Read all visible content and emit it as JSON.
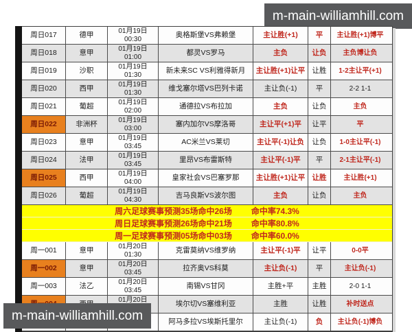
{
  "watermark": "m-main-williamhill.com",
  "colors": {
    "highlight_orange": "#e8801e",
    "banner_yellow": "#ffff00",
    "prediction_red": "#c0281e",
    "watermark_gray": "#58595b"
  },
  "table": {
    "rows": [
      {
        "type": "match",
        "id": "周日017",
        "league": "德甲",
        "date": "01月19日",
        "time": "00:30",
        "teams": "奥格斯堡VS弗赖堡",
        "preds": [
          {
            "text": "主让胜(+1)",
            "style": "red"
          },
          {
            "text": "平",
            "style": "red"
          },
          {
            "text": "主让胜(+1)博平",
            "style": "red"
          }
        ],
        "highlight": false,
        "shade": false
      },
      {
        "type": "match",
        "id": "周日018",
        "league": "意甲",
        "date": "01月19日",
        "time": "01:00",
        "teams": "都灵VS罗马",
        "preds": [
          {
            "text": "主负",
            "style": "red"
          },
          {
            "text": "让负",
            "style": "red"
          },
          {
            "text": "主负博让负",
            "style": "red"
          }
        ],
        "highlight": false,
        "shade": true
      },
      {
        "type": "match",
        "id": "周日019",
        "league": "沙职",
        "date": "01月19日",
        "time": "01:30",
        "teams": "新未来SC VS利雅得新月",
        "preds": [
          {
            "text": "主让胜(+1)让平",
            "style": "red"
          },
          {
            "text": "让胜",
            "style": "black"
          },
          {
            "text": "1-2主让平(+1)",
            "style": "red"
          }
        ],
        "highlight": false,
        "shade": false
      },
      {
        "type": "match",
        "id": "周日020",
        "league": "西甲",
        "date": "01月19日",
        "time": "01:30",
        "teams": "维戈塞尔塔VS巴列卡诺",
        "preds": [
          {
            "text": "主让负(-1)",
            "style": "black"
          },
          {
            "text": "平",
            "style": "black"
          },
          {
            "text": "2-2 1-1",
            "style": "black"
          }
        ],
        "highlight": false,
        "shade": true
      },
      {
        "type": "match",
        "id": "周日021",
        "league": "葡超",
        "date": "01月19日",
        "time": "02:00",
        "teams": "通德拉VS布拉加",
        "preds": [
          {
            "text": "主负",
            "style": "red"
          },
          {
            "text": "让负",
            "style": "black"
          },
          {
            "text": "主负",
            "style": "red"
          }
        ],
        "highlight": false,
        "shade": false
      },
      {
        "type": "match",
        "id": "周日022",
        "league": "非洲杯",
        "date": "01月19日",
        "time": "03:00",
        "teams": "塞内加尔VS摩洛哥",
        "preds": [
          {
            "text": "主让平(+1)平",
            "style": "red"
          },
          {
            "text": "让平",
            "style": "black"
          },
          {
            "text": "平",
            "style": "red"
          }
        ],
        "highlight": true,
        "shade": true
      },
      {
        "type": "match",
        "id": "周日023",
        "league": "意甲",
        "date": "01月19日",
        "time": "03:45",
        "teams": "AC米兰VS莱切",
        "preds": [
          {
            "text": "主让平(-1)让负",
            "style": "red"
          },
          {
            "text": "让负",
            "style": "black"
          },
          {
            "text": "1-0主让平(-1)",
            "style": "red"
          }
        ],
        "highlight": false,
        "shade": false
      },
      {
        "type": "match",
        "id": "周日024",
        "league": "法甲",
        "date": "01月19日",
        "time": "03:45",
        "teams": "里昂VS布雷斯特",
        "preds": [
          {
            "text": "主让平(-1)平",
            "style": "red"
          },
          {
            "text": "平",
            "style": "black"
          },
          {
            "text": "2-1主让平(-1)",
            "style": "red"
          }
        ],
        "highlight": false,
        "shade": true
      },
      {
        "type": "match",
        "id": "周日025",
        "league": "西甲",
        "date": "01月19日",
        "time": "04:00",
        "teams": "皇家社会VS巴塞罗那",
        "preds": [
          {
            "text": "主让胜(+1)让平",
            "style": "red"
          },
          {
            "text": "让胜",
            "style": "red"
          },
          {
            "text": "主让胜(+1)",
            "style": "red"
          }
        ],
        "highlight": true,
        "shade": false
      },
      {
        "type": "match",
        "id": "周日026",
        "league": "葡超",
        "date": "01月19日",
        "time": "04:30",
        "teams": "吉马良斯VS波尔图",
        "preds": [
          {
            "text": "主负",
            "style": "red"
          },
          {
            "text": "让负",
            "style": "black"
          },
          {
            "text": "主负",
            "style": "red"
          }
        ],
        "highlight": false,
        "shade": true
      },
      {
        "type": "banner",
        "label": "周六足球赛事预测35场命中26场",
        "rate": "命中率74.3%"
      },
      {
        "type": "banner",
        "label": "周日足球赛事预测26场命中21场",
        "rate": "命中率80.8%"
      },
      {
        "type": "banner",
        "label": "周一足球赛事预测05场命中03场",
        "rate": "命中率60.0%"
      },
      {
        "type": "match",
        "id": "周一001",
        "league": "意甲",
        "date": "01月20日",
        "time": "01:30",
        "teams": "克雷莫纳VS维罗纳",
        "preds": [
          {
            "text": "主让平(-1)平",
            "style": "red"
          },
          {
            "text": "让平",
            "style": "black"
          },
          {
            "text": "0-0平",
            "style": "red"
          }
        ],
        "highlight": false,
        "shade": false
      },
      {
        "type": "match",
        "id": "周一002",
        "league": "意甲",
        "date": "01月20日",
        "time": "03:45",
        "teams": "拉齐奥VS科莫",
        "preds": [
          {
            "text": "主让负(-1)",
            "style": "red"
          },
          {
            "text": "平",
            "style": "black"
          },
          {
            "text": "主让负(-1)",
            "style": "red"
          }
        ],
        "highlight": true,
        "shade": true
      },
      {
        "type": "match",
        "id": "周一003",
        "league": "法乙",
        "date": "01月20日",
        "time": "03:45",
        "teams": "南锡VS甘冈",
        "preds": [
          {
            "text": "主胜+平",
            "style": "black"
          },
          {
            "text": "主胜",
            "style": "black"
          },
          {
            "text": "2-0 1-1",
            "style": "black"
          }
        ],
        "highlight": false,
        "shade": false
      },
      {
        "type": "match",
        "id": "周一004",
        "league": "西甲",
        "date": "01月20日",
        "time": "04:00",
        "teams": "埃尔切VS塞维利亚",
        "preds": [
          {
            "text": "主胜",
            "style": "black"
          },
          {
            "text": "让胜",
            "style": "black"
          },
          {
            "text": "补时送点",
            "style": "red"
          }
        ],
        "highlight": true,
        "shade": true
      },
      {
        "type": "match",
        "id": "周一005",
        "league": "葡超",
        "date": "01月20日",
        "time": "04:15",
        "teams": "阿马多拉VS埃斯托里尔",
        "preds": [
          {
            "text": "主让负(-1)",
            "style": "black"
          },
          {
            "text": "负",
            "style": "red"
          },
          {
            "text": "主让负(-1)博负",
            "style": "red"
          }
        ],
        "highlight": false,
        "shade": false
      }
    ]
  }
}
